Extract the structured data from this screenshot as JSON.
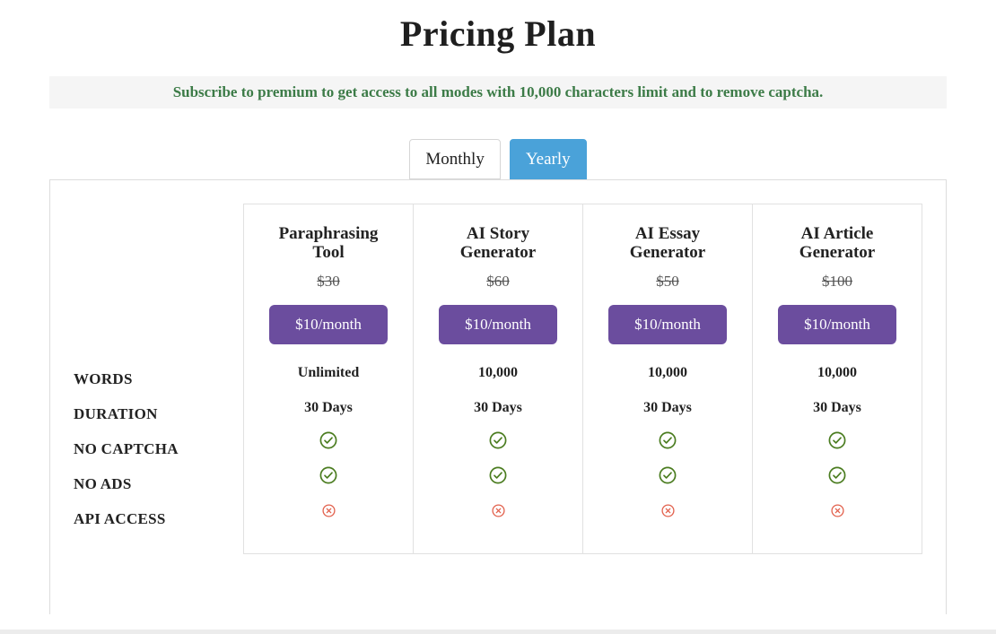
{
  "title": "Pricing Plan",
  "banner": {
    "text": "Subscribe to premium to get access to all modes with 10,000 characters limit and to remove captcha."
  },
  "tabs": [
    {
      "label": "Monthly",
      "active": false
    },
    {
      "label": "Yearly",
      "active": true
    }
  ],
  "feature_labels": [
    "WORDS",
    "DURATION",
    "NO CAPTCHA",
    "NO ADS",
    "API ACCESS"
  ],
  "plans": [
    {
      "name": "Paraphrasing Tool",
      "original_price": "$30",
      "button_label": "$10/month",
      "features": {
        "words": "Unlimited",
        "duration": "30 Days",
        "no_captcha": true,
        "no_ads": true,
        "api_access": false
      }
    },
    {
      "name": "AI Story Generator",
      "original_price": "$60",
      "button_label": "$10/month",
      "features": {
        "words": "10,000",
        "duration": "30 Days",
        "no_captcha": true,
        "no_ads": true,
        "api_access": false
      }
    },
    {
      "name": "AI Essay Generator",
      "original_price": "$50",
      "button_label": "$10/month",
      "features": {
        "words": "10,000",
        "duration": "30 Days",
        "no_captcha": true,
        "no_ads": true,
        "api_access": false
      }
    },
    {
      "name": "AI Article Generator",
      "original_price": "$100",
      "button_label": "$10/month",
      "features": {
        "words": "10,000",
        "duration": "30 Days",
        "no_captcha": true,
        "no_ads": true,
        "api_access": false
      }
    }
  ],
  "icons": {
    "yes": "check-circle-icon",
    "no": "x-circle-icon"
  },
  "colors": {
    "button_purple": "#6b4d9e",
    "active_tab_blue": "#4aa2d9",
    "banner_green": "#3c7b47",
    "check_green": "#4a7c1f",
    "cross_red": "#e2604c",
    "banner_bg": "#f5f5f5"
  }
}
